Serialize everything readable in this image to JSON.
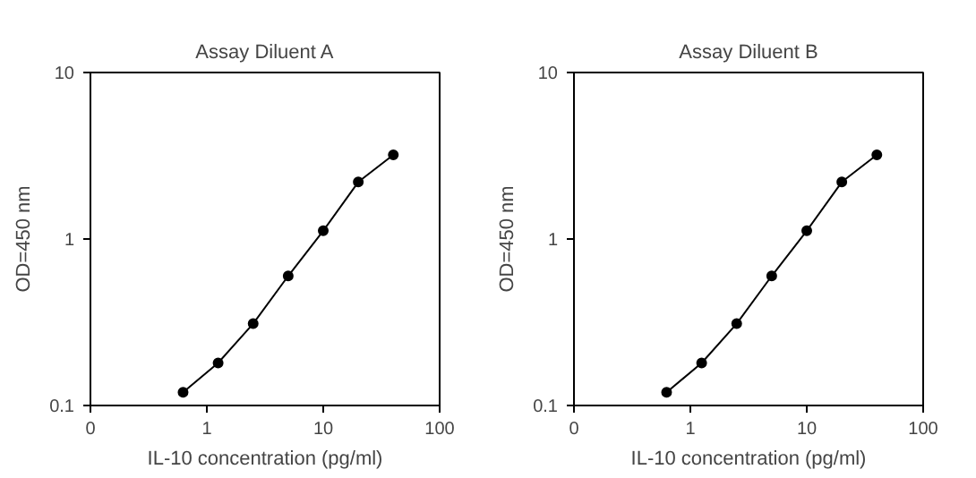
{
  "chart_data": [
    {
      "type": "line",
      "title": "Assay Diluent A",
      "xlabel": "IL-10 concentration (pg/ml)",
      "ylabel": "OD=450 nm",
      "log": "xy",
      "marker": "circle",
      "line_style": "solid",
      "grid": false,
      "x": [
        0.625,
        1.25,
        2.5,
        5,
        10,
        20,
        40
      ],
      "series": [
        {
          "color": "#000000",
          "values": [
            0.12,
            0.18,
            0.31,
            0.6,
            1.12,
            2.2,
            3.2
          ]
        }
      ],
      "xlim": [
        0.1,
        100
      ],
      "xticks": [
        {
          "value": 0.1,
          "label": "0"
        },
        1,
        10,
        100
      ],
      "ylim": [
        0.1,
        10
      ],
      "yticks": [
        0.1,
        1,
        10
      ]
    },
    {
      "type": "line",
      "title": "Assay Diluent B",
      "xlabel": "IL-10 concentration (pg/ml)",
      "ylabel": "OD=450 nm",
      "log": "xy",
      "marker": "circle",
      "line_style": "solid",
      "grid": false,
      "x": [
        0.625,
        1.25,
        2.5,
        5,
        10,
        20,
        40
      ],
      "series": [
        {
          "color": "#000000",
          "values": [
            0.12,
            0.18,
            0.31,
            0.6,
            1.12,
            2.2,
            3.2
          ]
        }
      ],
      "xlim": [
        0.1,
        100
      ],
      "xticks": [
        {
          "value": 0.1,
          "label": "0"
        },
        1,
        10,
        100
      ],
      "ylim": [
        0.1,
        10
      ],
      "yticks": [
        0.1,
        1,
        10
      ]
    }
  ]
}
